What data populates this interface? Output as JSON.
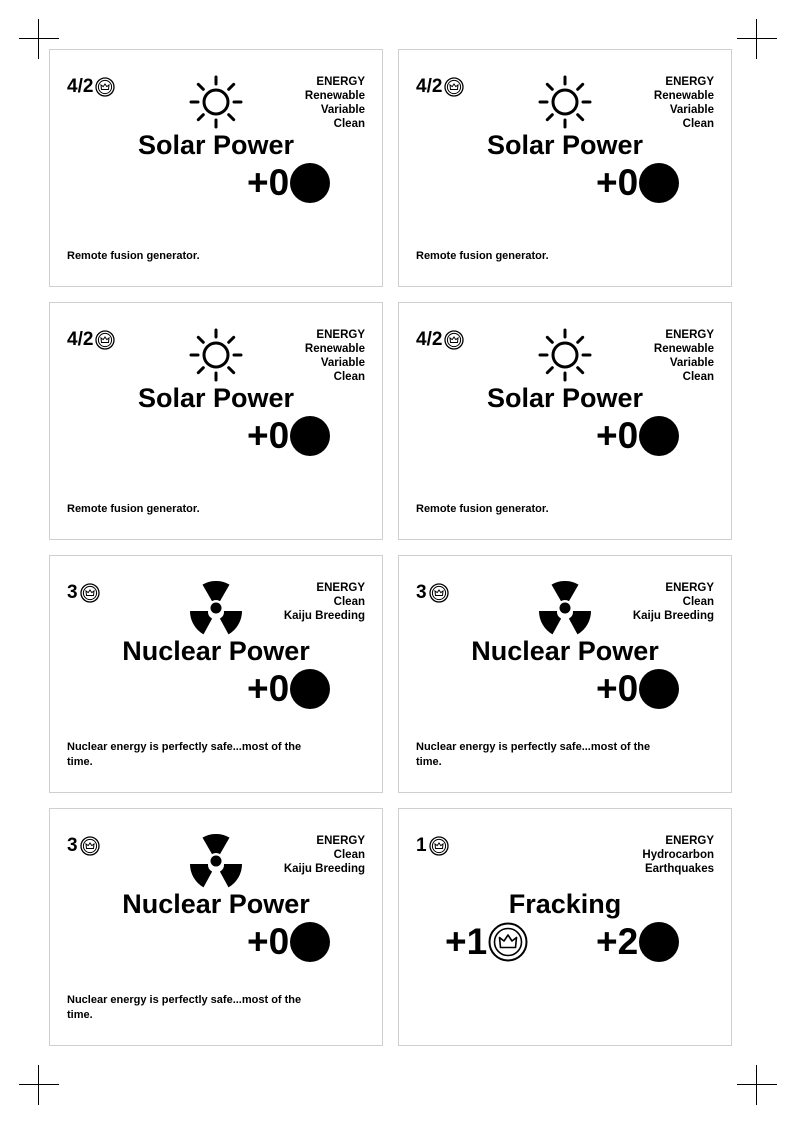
{
  "cards": [
    {
      "cost": "4/2",
      "icon": "sun-icon",
      "type": "ENERGY",
      "tags": [
        "Renewable",
        "Variable",
        "Clean"
      ],
      "title": "Solar Power",
      "output": "+0",
      "flavor": "Remote fusion generator."
    },
    {
      "cost": "4/2",
      "icon": "sun-icon",
      "type": "ENERGY",
      "tags": [
        "Renewable",
        "Variable",
        "Clean"
      ],
      "title": "Solar Power",
      "output": "+0",
      "flavor": "Remote fusion generator."
    },
    {
      "cost": "4/2",
      "icon": "sun-icon",
      "type": "ENERGY",
      "tags": [
        "Renewable",
        "Variable",
        "Clean"
      ],
      "title": "Solar Power",
      "output": "+0",
      "flavor": "Remote fusion generator."
    },
    {
      "cost": "4/2",
      "icon": "sun-icon",
      "type": "ENERGY",
      "tags": [
        "Renewable",
        "Variable",
        "Clean"
      ],
      "title": "Solar Power",
      "output": "+0",
      "flavor": "Remote fusion generator."
    },
    {
      "cost": "3",
      "icon": "radiation-icon",
      "type": "ENERGY",
      "tags": [
        "Clean",
        "Kaiju Breeding"
      ],
      "title": "Nuclear Power",
      "output": "+0",
      "flavor": "Nuclear energy is perfectly safe...most of the time."
    },
    {
      "cost": "3",
      "icon": "radiation-icon",
      "type": "ENERGY",
      "tags": [
        "Clean",
        "Kaiju Breeding"
      ],
      "title": "Nuclear Power",
      "output": "+0",
      "flavor": "Nuclear energy is perfectly safe...most of the time."
    },
    {
      "cost": "3",
      "icon": "radiation-icon",
      "type": "ENERGY",
      "tags": [
        "Clean",
        "Kaiju Breeding"
      ],
      "title": "Nuclear Power",
      "output": "+0",
      "flavor": "Nuclear energy is perfectly safe...most of the time."
    },
    {
      "cost": "1",
      "icon": "",
      "type": "ENERGY",
      "tags": [
        "Hydrocarbon",
        "Earthquakes"
      ],
      "title": "Fracking",
      "bonus": "+1",
      "output": "+2",
      "flavor": ""
    }
  ],
  "colors": {
    "ink": "#000000",
    "card_border": "#cfcfcf",
    "paper": "#ffffff"
  }
}
